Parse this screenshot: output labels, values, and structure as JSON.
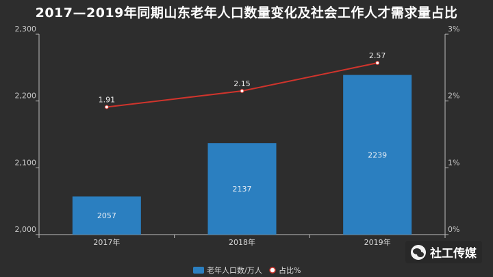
{
  "chart_data": {
    "type": "bar+line",
    "title": "2017—2019年同期山东老年人口数量变化及社会工作人才需求量占比",
    "categories": [
      "2017年",
      "2018年",
      "2019年"
    ],
    "series": [
      {
        "name": "老年人口数/万人",
        "type": "bar",
        "axis": "left",
        "values": [
          2057,
          2137,
          2239
        ],
        "labels": [
          "2057",
          "2137",
          "2239"
        ],
        "color": "#2b7fc0"
      },
      {
        "name": "占比%",
        "type": "line",
        "axis": "right",
        "values": [
          1.91,
          2.15,
          2.57
        ],
        "labels": [
          "1.91",
          "2.15",
          "2.57"
        ],
        "color": "#d0342c"
      }
    ],
    "y_left": {
      "min": 2000,
      "max": 2300,
      "ticks": [
        "2,000",
        "2,100",
        "2,200",
        "2,300"
      ],
      "tick_values": [
        2000,
        2100,
        2200,
        2300
      ]
    },
    "y_right": {
      "min": 0,
      "max": 3,
      "ticks": [
        "0%",
        "1%",
        "2%",
        "3%"
      ],
      "tick_values": [
        0,
        1,
        2,
        3
      ]
    },
    "legend_position": "bottom-center",
    "grid": false
  },
  "watermark": {
    "text": "社工传媒",
    "icon": "wechat-icon"
  }
}
